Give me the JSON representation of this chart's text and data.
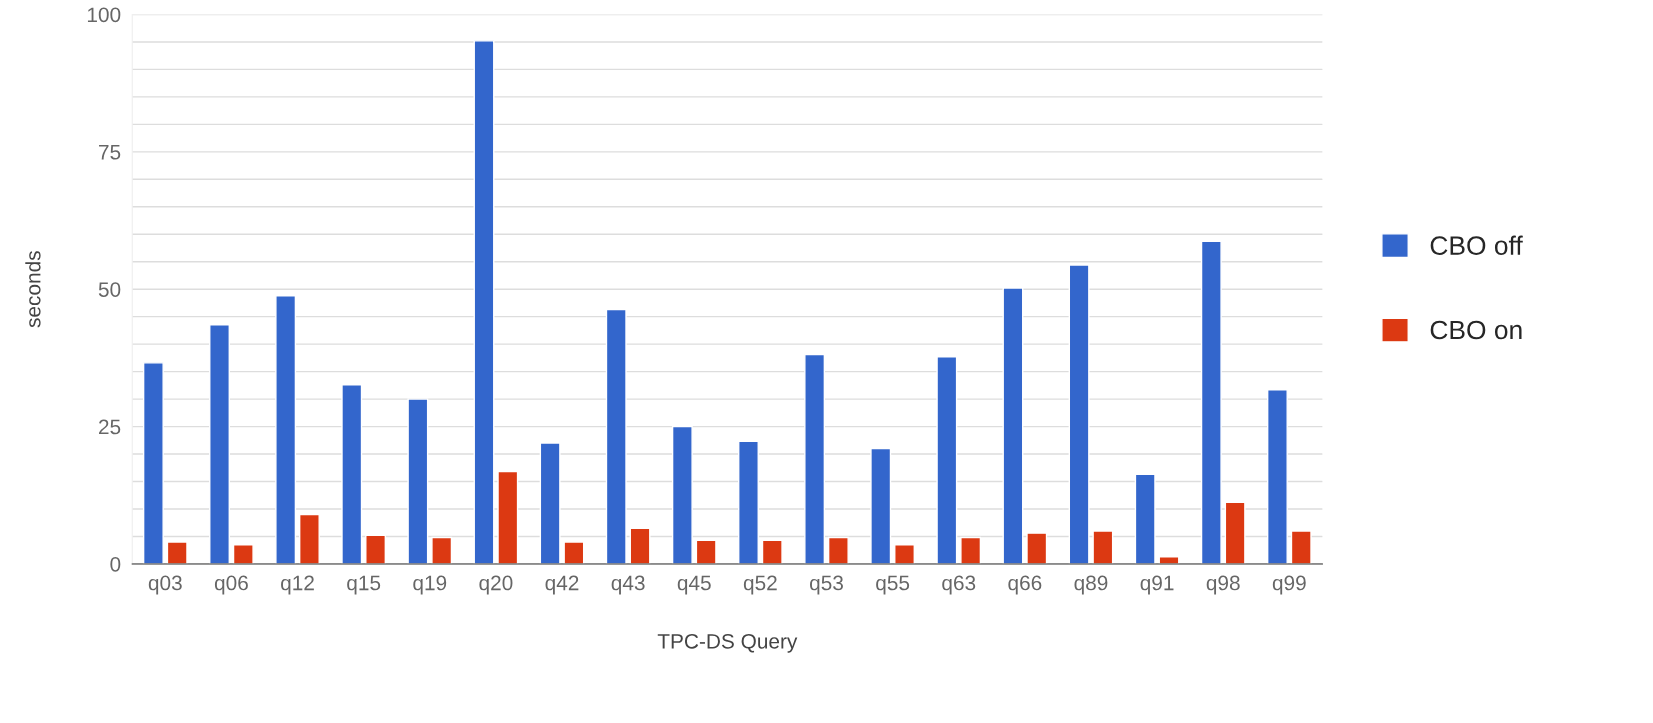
{
  "chart_data": {
    "type": "bar",
    "xlabel": "TPC-DS Query",
    "ylabel": "seconds",
    "categories": [
      "q03",
      "q06",
      "q12",
      "q15",
      "q19",
      "q20",
      "q42",
      "q43",
      "q45",
      "q52",
      "q53",
      "q55",
      "q63",
      "q66",
      "q89",
      "q91",
      "q98",
      "q99"
    ],
    "series": [
      {
        "name": "CBO off",
        "color": "#3366cc",
        "values": [
          36.6,
          43.5,
          48.8,
          32.6,
          30,
          95.2,
          22,
          46.3,
          25,
          22.3,
          38.1,
          21,
          37.7,
          50.2,
          54.4,
          16.3,
          58.7,
          31.7
        ]
      },
      {
        "name": "CBO on",
        "color": "#dc3912",
        "values": [
          4,
          3.5,
          9,
          5.2,
          4.8,
          16.8,
          4,
          6.5,
          4.3,
          4.3,
          4.8,
          3.5,
          4.8,
          5.6,
          6,
          1.3,
          11.2,
          6
        ]
      }
    ],
    "ylim": [
      0,
      100
    ],
    "yticks": [
      0,
      {
        "value": 5,
        "label": null
      },
      {
        "value": 10,
        "label": null
      },
      {
        "value": 15,
        "label": null
      },
      {
        "value": 20,
        "label": null
      },
      25,
      {
        "value": 30,
        "label": null
      },
      {
        "value": 35,
        "label": null
      },
      {
        "value": 40,
        "label": null
      },
      {
        "value": 45,
        "label": null
      },
      50,
      {
        "value": 55,
        "label": null
      },
      {
        "value": 60,
        "label": null
      },
      {
        "value": 65,
        "label": null
      },
      {
        "value": 70,
        "label": null
      },
      75,
      {
        "value": 80,
        "label": null
      },
      {
        "value": 85,
        "label": null
      },
      {
        "value": 90,
        "label": null
      },
      {
        "value": 95,
        "label": null
      },
      100
    ],
    "grid": "y",
    "legend": "right"
  }
}
